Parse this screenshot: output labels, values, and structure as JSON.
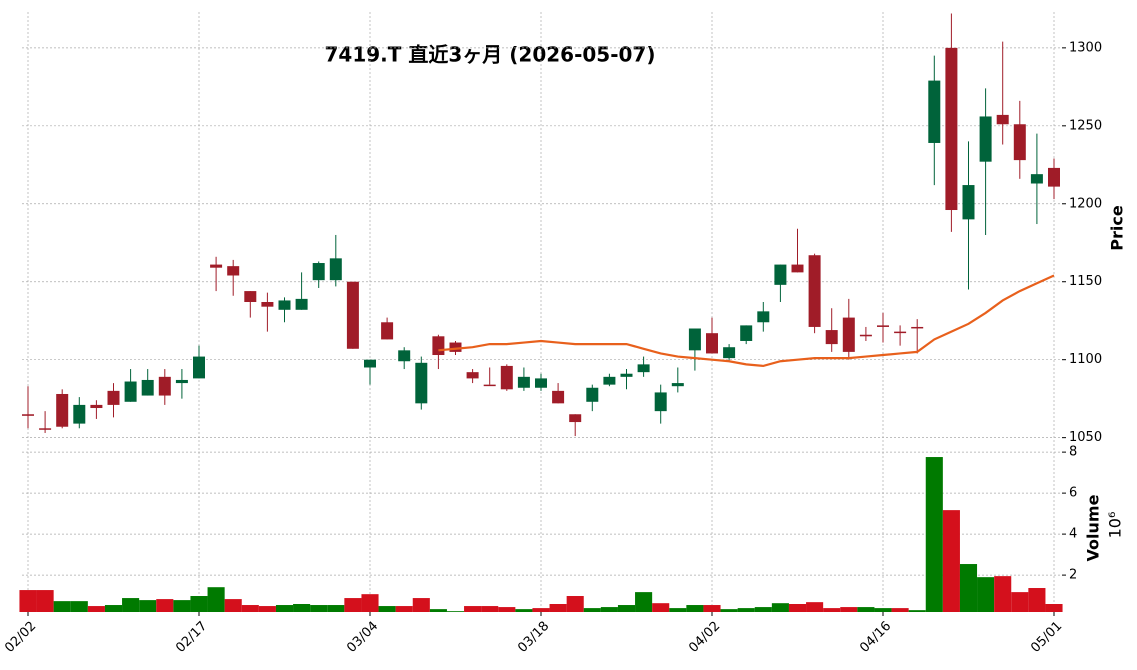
{
  "chart_data": {
    "type": "candlestick",
    "title": "7419.T  直近3ヶ月  (2026-05-07)",
    "categories": [
      "02/02",
      null,
      null,
      null,
      null,
      null,
      null,
      null,
      null,
      null,
      "02/17",
      null,
      null,
      null,
      null,
      null,
      null,
      null,
      null,
      null,
      "03/04",
      null,
      null,
      null,
      null,
      null,
      null,
      null,
      null,
      null,
      "03/18",
      null,
      null,
      null,
      null,
      null,
      null,
      null,
      null,
      null,
      "04/02",
      null,
      null,
      null,
      null,
      null,
      null,
      null,
      null,
      null,
      "04/16",
      null,
      null,
      null,
      null,
      null,
      null,
      null,
      null,
      null,
      "05/01"
    ],
    "open": [
      1065,
      1056,
      1078,
      1059,
      1071,
      1080,
      1073,
      1077,
      1089,
      1085,
      1088,
      1161,
      1160,
      1144,
      1137,
      1132,
      1132,
      1151,
      1151,
      1150,
      1095,
      1124,
      1099,
      1072,
      1115,
      1111,
      1092,
      1084,
      1096,
      1082,
      1082,
      1080,
      1065,
      1073,
      1084,
      1089,
      1092,
      1067,
      1083,
      1106,
      1117,
      1101,
      1112,
      1124,
      1148,
      1161,
      1167,
      1119,
      1127,
      1116,
      1122,
      1118,
      1121,
      1239,
      1300,
      1190,
      1227,
      1257,
      1251,
      1213,
      1223
    ],
    "high": [
      1083,
      1067,
      1081,
      1076,
      1074,
      1085,
      1094,
      1094,
      1094,
      1094,
      1109,
      1166,
      1164,
      1144,
      1143,
      1140,
      1156,
      1163,
      1180,
      1150,
      1100,
      1127,
      1108,
      1102,
      1116,
      1112,
      1094,
      1095,
      1097,
      1095,
      1091,
      1085,
      1065,
      1084,
      1091,
      1094,
      1102,
      1084,
      1095,
      1120,
      1127,
      1110,
      1122,
      1137,
      1161,
      1184,
      1168,
      1133,
      1139,
      1121,
      1130,
      1122,
      1126,
      1295,
      1322,
      1240,
      1274,
      1304,
      1266,
      1245,
      1229
    ],
    "low": [
      1056,
      1053,
      1056,
      1056,
      1062,
      1063,
      1073,
      1077,
      1071,
      1075,
      1088,
      1144,
      1141,
      1127,
      1118,
      1124,
      1132,
      1146,
      1147,
      1107,
      1084,
      1113,
      1094,
      1068,
      1094,
      1103,
      1085,
      1084,
      1080,
      1080,
      1080,
      1072,
      1051,
      1067,
      1083,
      1081,
      1089,
      1059,
      1079,
      1093,
      1104,
      1099,
      1110,
      1118,
      1137,
      1156,
      1117,
      1105,
      1100,
      1112,
      1111,
      1109,
      1104,
      1212,
      1182,
      1145,
      1180,
      1238,
      1216,
      1187,
      1203
    ],
    "close": [
      1064,
      1056,
      1057,
      1071,
      1069,
      1071,
      1086,
      1087,
      1077,
      1087,
      1102,
      1159,
      1154,
      1137,
      1134,
      1138,
      1139,
      1162,
      1165,
      1107,
      1100,
      1113,
      1106,
      1098,
      1103,
      1105,
      1088,
      1084,
      1081,
      1089,
      1088,
      1072,
      1060,
      1082,
      1089,
      1091,
      1097,
      1079,
      1085,
      1120,
      1104,
      1108,
      1122,
      1131,
      1161,
      1156,
      1121,
      1110,
      1105,
      1115,
      1121,
      1118,
      1121,
      1279,
      1196,
      1212,
      1256,
      1251,
      1228,
      1219,
      1211
    ],
    "ma": [
      null,
      null,
      null,
      null,
      null,
      null,
      null,
      null,
      null,
      null,
      null,
      null,
      null,
      null,
      null,
      null,
      null,
      null,
      null,
      null,
      null,
      null,
      null,
      null,
      1106,
      1107,
      1108,
      1110,
      1110,
      1111,
      1112,
      1111,
      1110,
      1110,
      1110,
      1110,
      1107,
      1104,
      1102,
      1101,
      1100,
      1099,
      1097,
      1096,
      1099,
      1100,
      1101,
      1101,
      1101,
      1102,
      1103,
      1104,
      1105,
      1113,
      1118,
      1123,
      1130,
      1138,
      1144,
      1149,
      1154
    ],
    "volume": [
      1.27,
      1.27,
      0.73,
      0.73,
      0.49,
      0.54,
      0.88,
      0.78,
      0.83,
      0.78,
      0.98,
      1.41,
      0.83,
      0.54,
      0.49,
      0.54,
      0.59,
      0.54,
      0.54,
      0.88,
      1.07,
      0.49,
      0.49,
      0.88,
      0.34,
      0.24,
      0.49,
      0.49,
      0.44,
      0.34,
      0.39,
      0.59,
      0.98,
      0.39,
      0.44,
      0.54,
      1.17,
      0.63,
      0.39,
      0.54,
      0.54,
      0.34,
      0.39,
      0.44,
      0.63,
      0.59,
      0.68,
      0.39,
      0.44,
      0.44,
      0.39,
      0.39,
      0.29,
      7.76,
      5.17,
      2.54,
      1.9,
      1.95,
      1.17,
      1.37,
      0.59
    ],
    "up_color": "#00633a",
    "down_color": "#a01c28",
    "volume_up_color": "#007a00",
    "volume_down_color": "#d4101c",
    "ma_color": "#e8601c",
    "ylabel": "Price",
    "ylim": [
      1044,
      1323
    ],
    "yticks": [
      1050,
      1100,
      1150,
      1200,
      1250,
      1300
    ],
    "volume_label": "Volume",
    "volume_multiplier": "10⁶",
    "volume_ylim": [
      0.2,
      8.25
    ],
    "volume_yticks": [
      2,
      4,
      6,
      8
    ],
    "grid": true
  }
}
